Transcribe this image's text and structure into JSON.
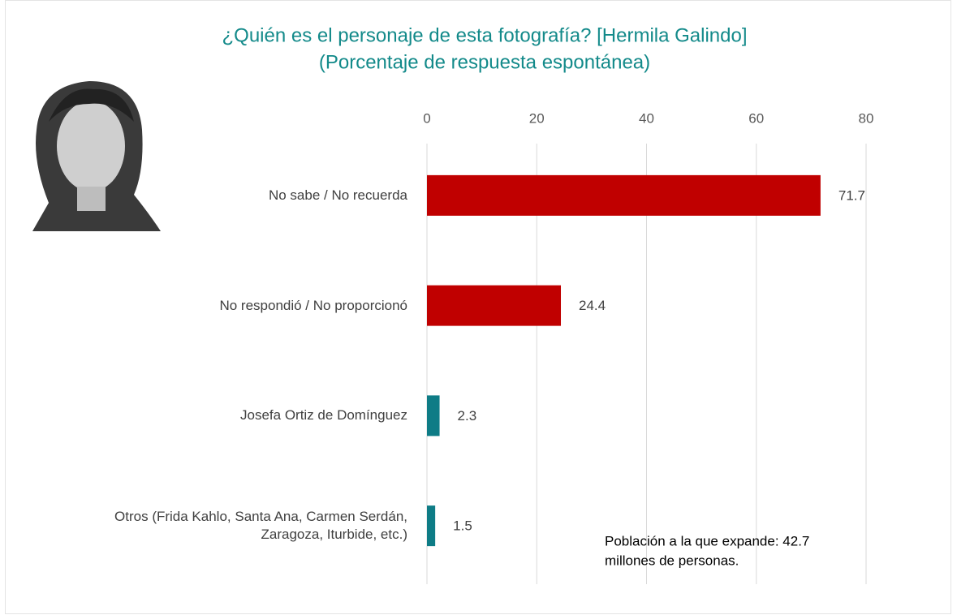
{
  "chart_data": {
    "type": "bar",
    "orientation": "horizontal",
    "title": "¿Quién es el personaje de esta fotografía? [Hermila Galindo]",
    "subtitle": "(Porcentaje de respuesta espontánea)",
    "categories": [
      "No sabe / No recuerda",
      "No respondió / No proporcionó",
      "Josefa Ortiz de Domínguez",
      "Otros (Frida Kahlo, Santa Ana, Carmen Serdán, Zaragoza, Iturbide, etc.)"
    ],
    "values": [
      71.7,
      24.4,
      2.3,
      1.5
    ],
    "colors": [
      "#c00000",
      "#c00000",
      "#0e7c86",
      "#0e7c86"
    ],
    "xlim": [
      0,
      80
    ],
    "xticks": [
      0,
      20,
      40,
      60,
      80
    ],
    "grid": true,
    "annotation": [
      "Población a la que expande: 42.7",
      "millones de personas."
    ]
  }
}
